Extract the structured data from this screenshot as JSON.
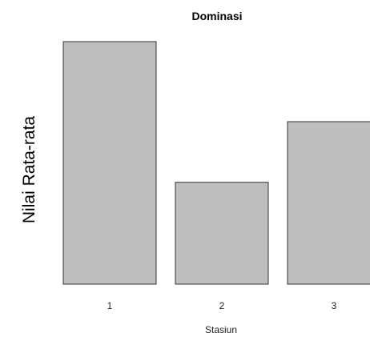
{
  "chart_data": {
    "type": "bar",
    "title": "Dominasi",
    "xlabel": "Stasiun",
    "ylabel": "Nilai Rata-rata",
    "categories": [
      "1",
      "2",
      "3"
    ],
    "values": [
      1.0,
      0.42,
      0.67
    ],
    "ylim": [
      0,
      1.0
    ],
    "bar_color": "#bebebe",
    "edge_color": "#333333",
    "grid": false
  }
}
